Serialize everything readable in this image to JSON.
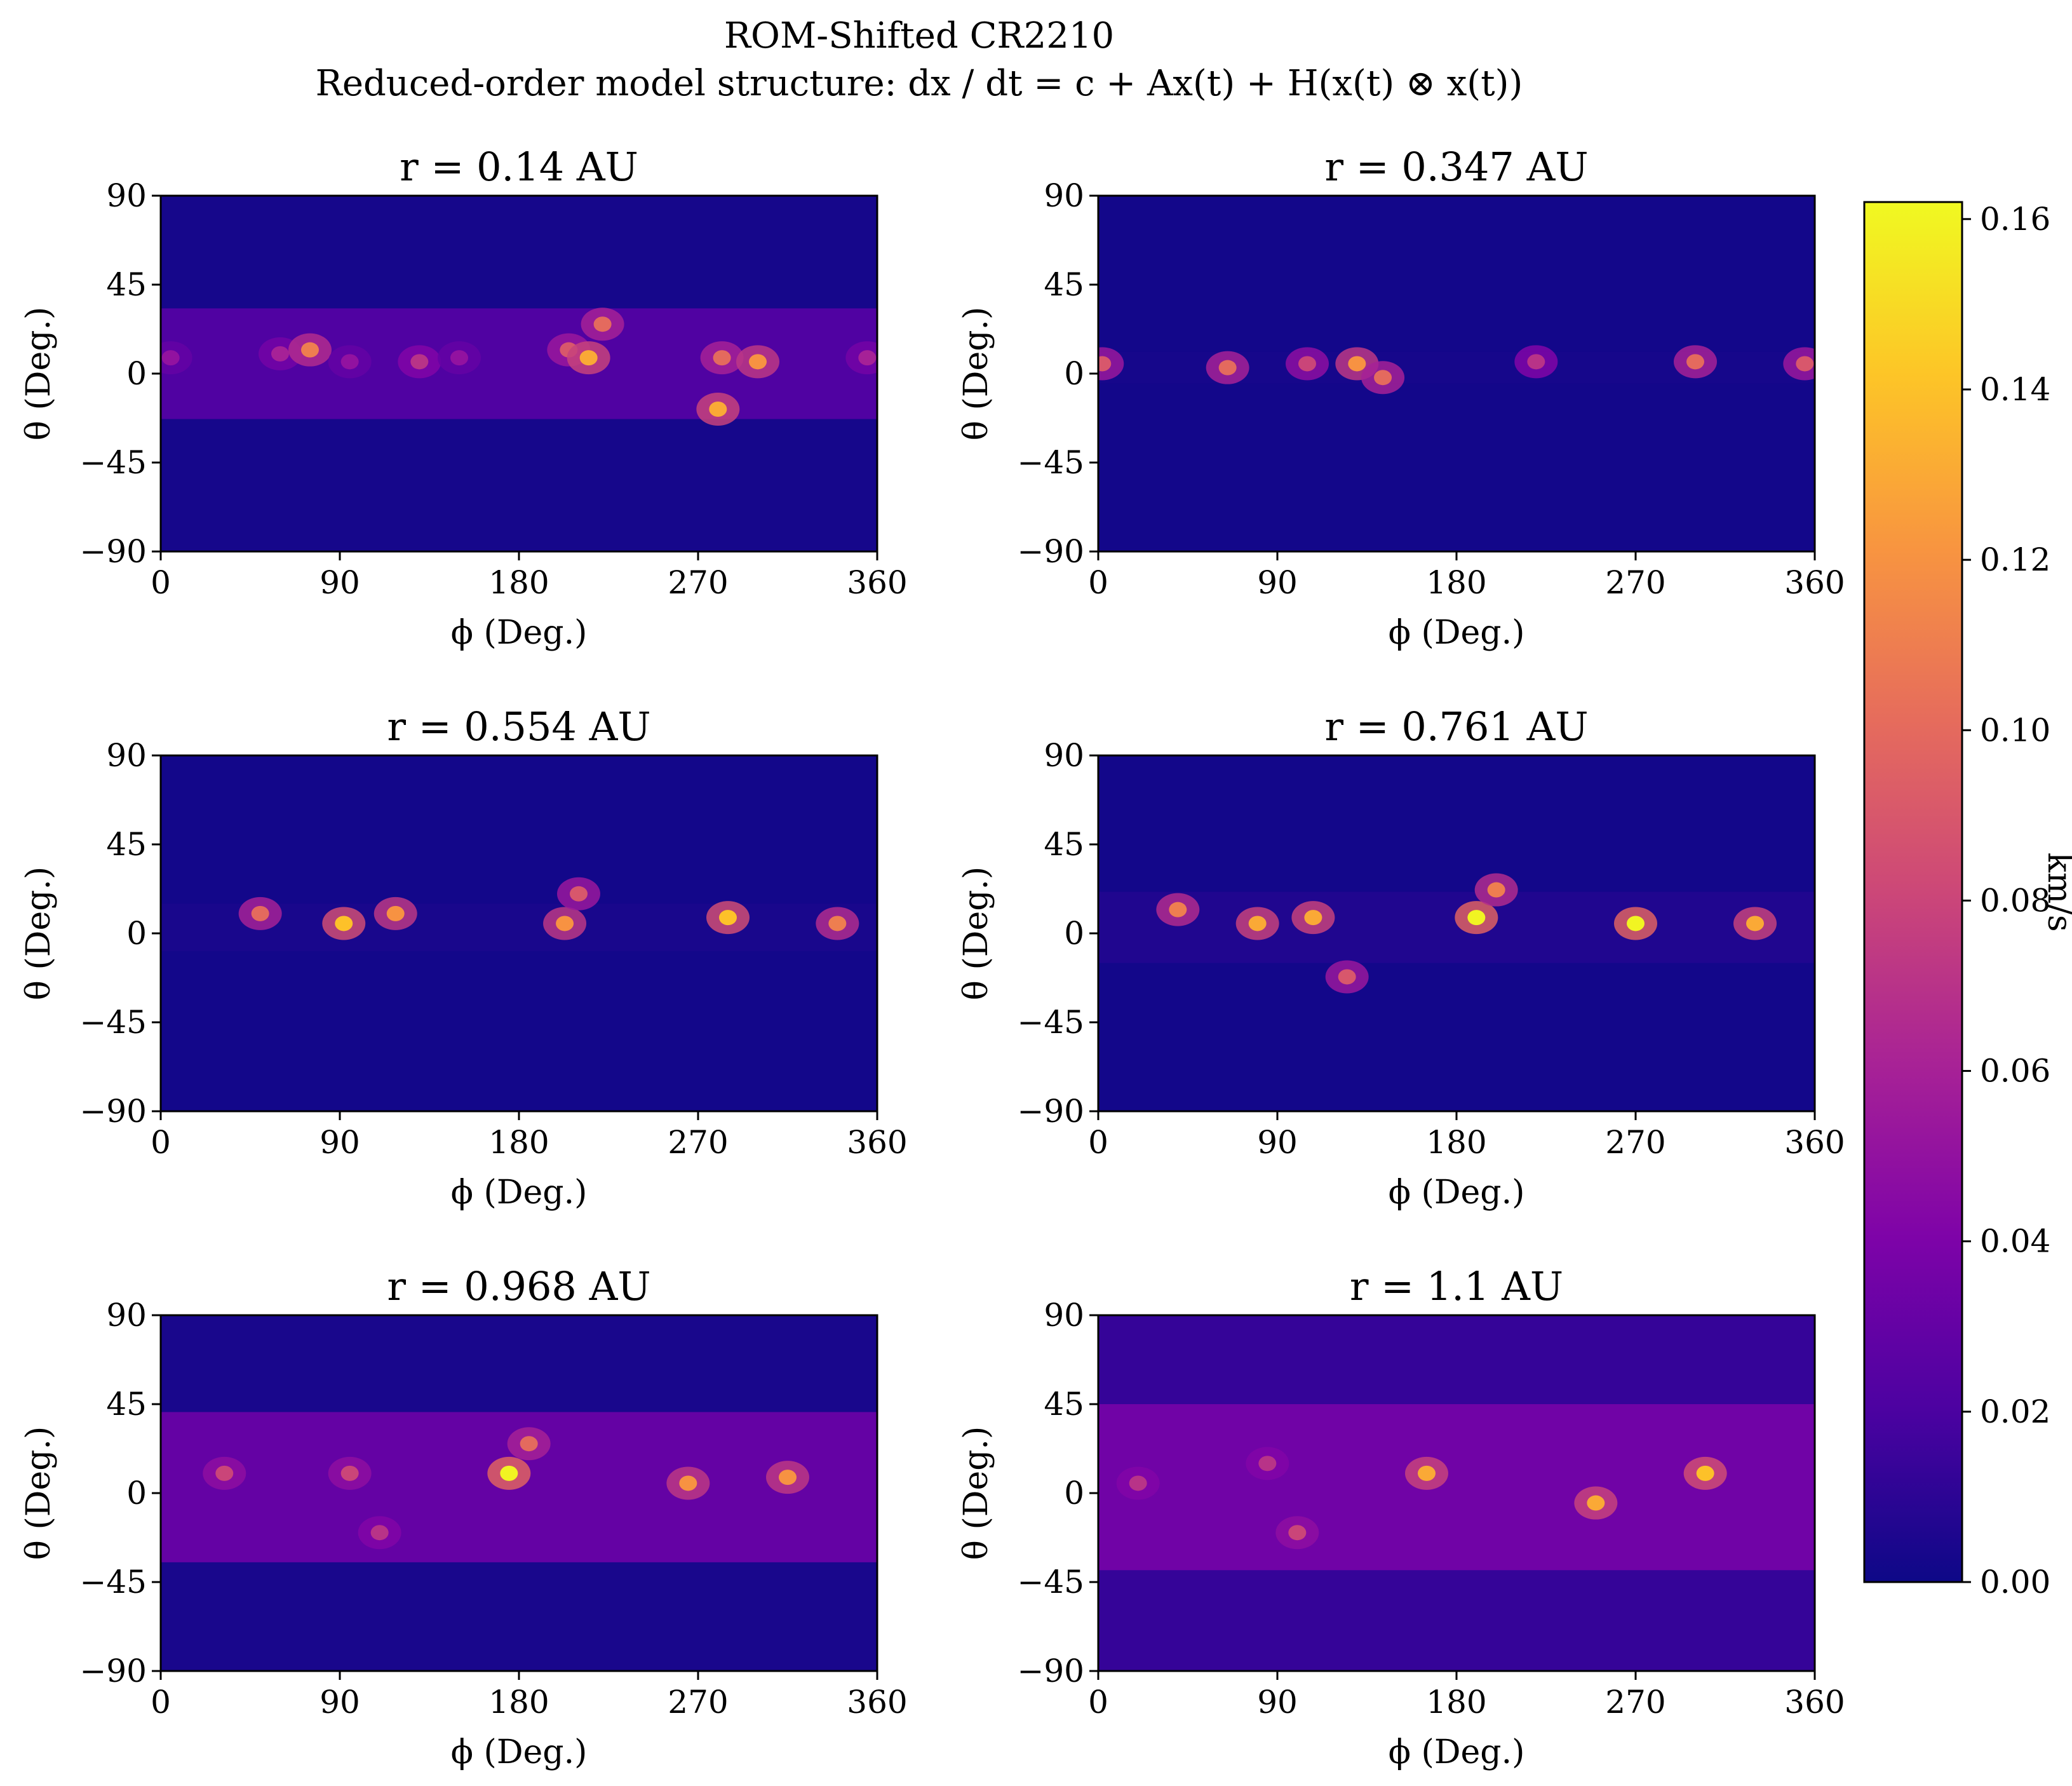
{
  "figure": {
    "title_line1": "ROM-Shifted CR2210",
    "title_line2": "Reduced-order model structure: dx / dt = c + Ax(t) + H(x(t) ⊗ x(t))"
  },
  "chart_data": {
    "type": "heatmap",
    "colormap": "plasma",
    "xlabel": "ϕ (Deg.)",
    "ylabel": "θ (Deg.)",
    "xlim": [
      0,
      360
    ],
    "ylim": [
      -90,
      90
    ],
    "xticks": [
      0,
      90,
      180,
      270,
      360
    ],
    "yticks": [
      90,
      45,
      0,
      -45,
      -90
    ],
    "ytick_labels": [
      "90",
      "45",
      "0",
      "−45",
      "−90"
    ],
    "xtick_labels": [
      "0",
      "90",
      "180",
      "270",
      "360"
    ],
    "colorbar": {
      "label": "km/s",
      "range": [
        0,
        0.162
      ],
      "ticks": [
        0.0,
        0.02,
        0.04,
        0.06,
        0.08,
        0.1,
        0.12,
        0.14,
        0.16
      ],
      "tick_labels": [
        "0.00",
        "0.02",
        "0.04",
        "0.06",
        "0.08",
        "0.10",
        "0.12",
        "0.14",
        "0.16"
      ]
    },
    "panels": [
      {
        "title": "r = 0.14 AU",
        "background": 0.003,
        "band": {
          "center": 5,
          "width": 28,
          "level": 0.022
        },
        "features": [
          {
            "phi": 5,
            "theta": 8,
            "value": 0.05
          },
          {
            "phi": 60,
            "theta": 10,
            "value": 0.06
          },
          {
            "phi": 75,
            "theta": 12,
            "value": 0.11
          },
          {
            "phi": 95,
            "theta": 6,
            "value": 0.05
          },
          {
            "phi": 130,
            "theta": 6,
            "value": 0.07
          },
          {
            "phi": 150,
            "theta": 8,
            "value": 0.05
          },
          {
            "phi": 205,
            "theta": 12,
            "value": 0.09
          },
          {
            "phi": 215,
            "theta": 8,
            "value": 0.13
          },
          {
            "phi": 222,
            "theta": 25,
            "value": 0.1
          },
          {
            "phi": 282,
            "theta": 8,
            "value": 0.1
          },
          {
            "phi": 300,
            "theta": 6,
            "value": 0.12
          },
          {
            "phi": 280,
            "theta": -18,
            "value": 0.13
          },
          {
            "phi": 355,
            "theta": 8,
            "value": 0.06
          }
        ]
      },
      {
        "title": "r = 0.347 AU",
        "background": 0.002,
        "band": {
          "center": 3,
          "width": 8,
          "level": 0.003
        },
        "features": [
          {
            "phi": 2,
            "theta": 5,
            "value": 0.09
          },
          {
            "phi": 65,
            "theta": 3,
            "value": 0.1
          },
          {
            "phi": 105,
            "theta": 5,
            "value": 0.08
          },
          {
            "phi": 130,
            "theta": 5,
            "value": 0.12
          },
          {
            "phi": 143,
            "theta": -2,
            "value": 0.1
          },
          {
            "phi": 220,
            "theta": 6,
            "value": 0.07
          },
          {
            "phi": 300,
            "theta": 6,
            "value": 0.1
          },
          {
            "phi": 355,
            "theta": 5,
            "value": 0.09
          }
        ]
      },
      {
        "title": "r = 0.554 AU",
        "background": 0.002,
        "band": {
          "center": 3,
          "width": 12,
          "level": 0.004
        },
        "features": [
          {
            "phi": 50,
            "theta": 10,
            "value": 0.1
          },
          {
            "phi": 92,
            "theta": 5,
            "value": 0.14
          },
          {
            "phi": 118,
            "theta": 10,
            "value": 0.12
          },
          {
            "phi": 203,
            "theta": 5,
            "value": 0.12
          },
          {
            "phi": 210,
            "theta": 20,
            "value": 0.09
          },
          {
            "phi": 285,
            "theta": 8,
            "value": 0.14
          },
          {
            "phi": 340,
            "theta": 5,
            "value": 0.11
          }
        ]
      },
      {
        "title": "r = 0.761 AU",
        "background": 0.002,
        "band": {
          "center": 3,
          "width": 18,
          "level": 0.006
        },
        "features": [
          {
            "phi": 40,
            "theta": 12,
            "value": 0.11
          },
          {
            "phi": 80,
            "theta": 5,
            "value": 0.13
          },
          {
            "phi": 108,
            "theta": 8,
            "value": 0.13
          },
          {
            "phi": 125,
            "theta": -22,
            "value": 0.09
          },
          {
            "phi": 190,
            "theta": 8,
            "value": 0.16
          },
          {
            "phi": 200,
            "theta": 22,
            "value": 0.11
          },
          {
            "phi": 270,
            "theta": 5,
            "value": 0.16
          },
          {
            "phi": 330,
            "theta": 5,
            "value": 0.13
          }
        ]
      },
      {
        "title": "r = 0.968 AU",
        "background": 0.004,
        "band": {
          "center": 3,
          "width": 38,
          "level": 0.03
        },
        "features": [
          {
            "phi": 32,
            "theta": 10,
            "value": 0.08
          },
          {
            "phi": 95,
            "theta": 10,
            "value": 0.08
          },
          {
            "phi": 175,
            "theta": 10,
            "value": 0.16
          },
          {
            "phi": 185,
            "theta": 25,
            "value": 0.1
          },
          {
            "phi": 110,
            "theta": -20,
            "value": 0.07
          },
          {
            "phi": 265,
            "theta": 5,
            "value": 0.12
          },
          {
            "phi": 315,
            "theta": 8,
            "value": 0.12
          }
        ]
      },
      {
        "title": "r = 1.1 AU",
        "background": 0.013,
        "band": {
          "center": 3,
          "width": 42,
          "level": 0.035
        },
        "features": [
          {
            "phi": 20,
            "theta": 5,
            "value": 0.07
          },
          {
            "phi": 85,
            "theta": 15,
            "value": 0.07
          },
          {
            "phi": 165,
            "theta": 10,
            "value": 0.13
          },
          {
            "phi": 250,
            "theta": -5,
            "value": 0.13
          },
          {
            "phi": 305,
            "theta": 10,
            "value": 0.14
          },
          {
            "phi": 100,
            "theta": -20,
            "value": 0.08
          }
        ]
      }
    ]
  }
}
